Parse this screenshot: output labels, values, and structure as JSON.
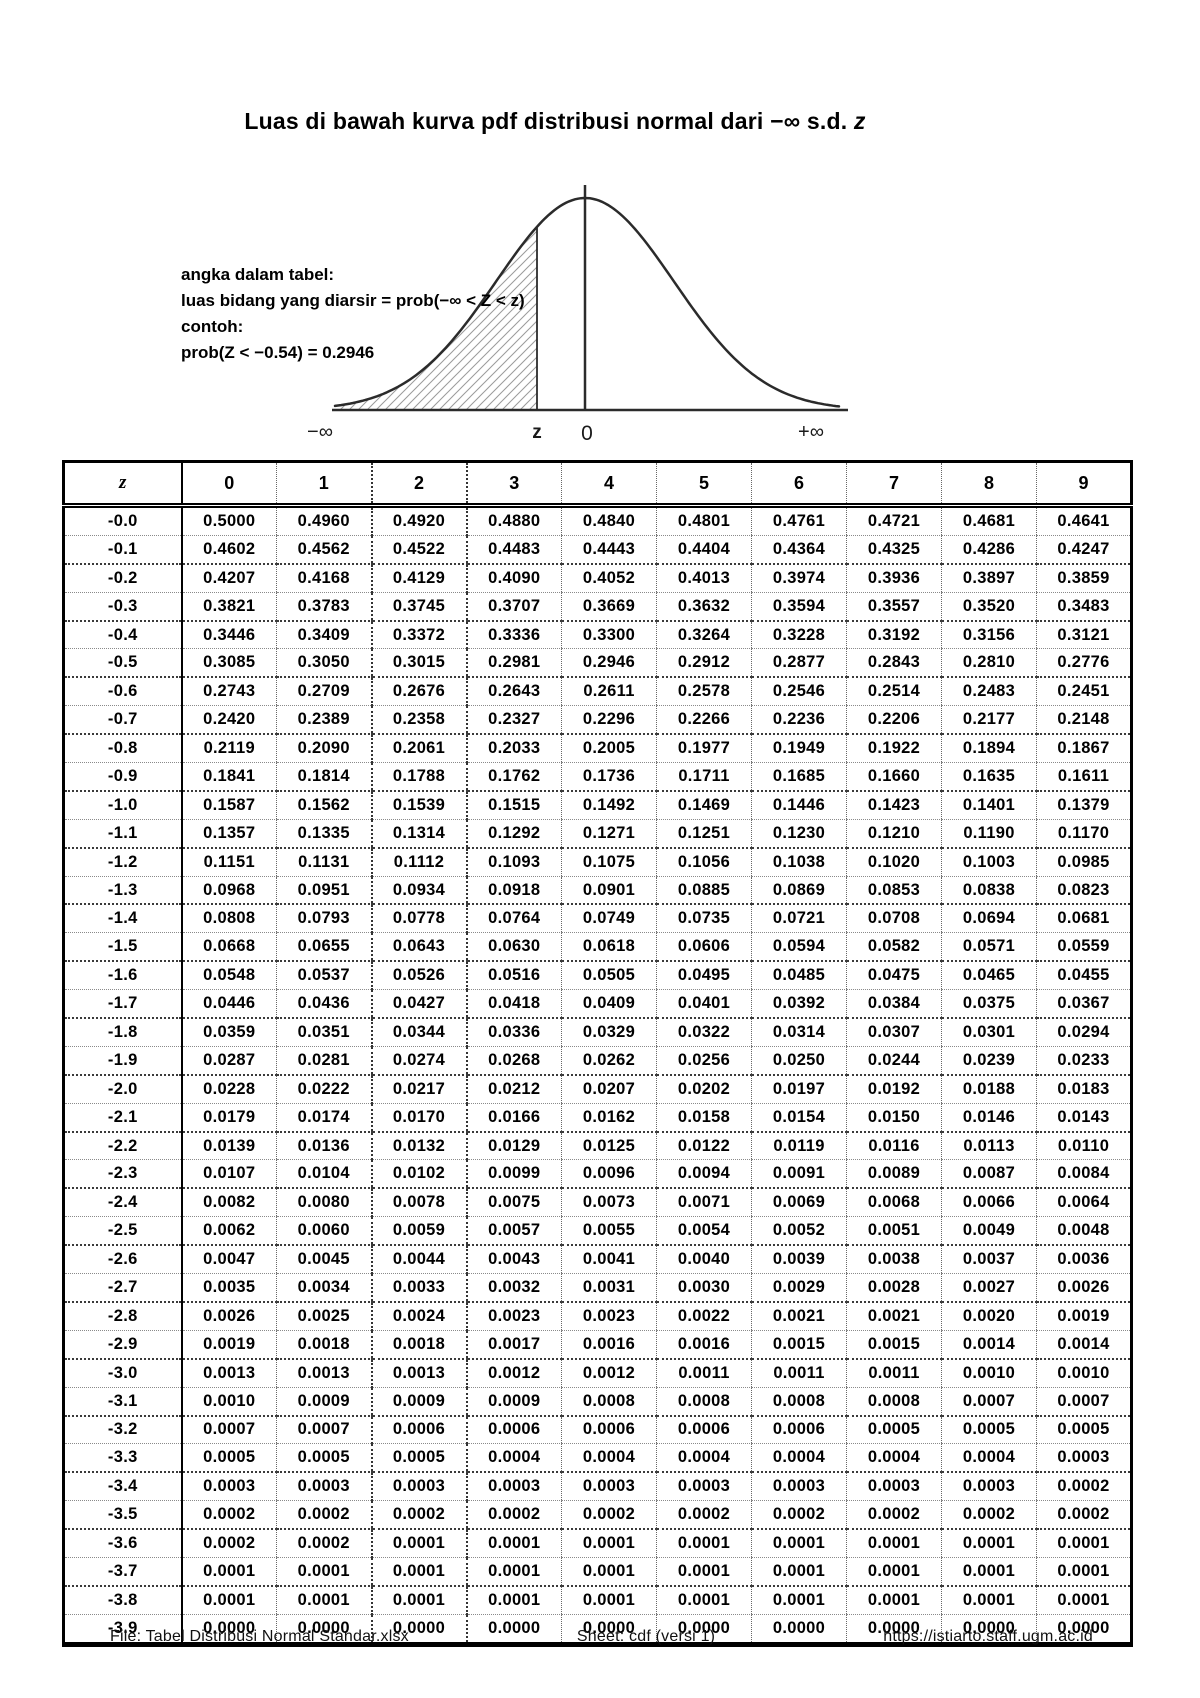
{
  "title": {
    "main": "Luas di bawah kurva pdf distribusi normal dari −∞ s.d. ",
    "italic_suffix": "z"
  },
  "figure": {
    "annotation_lines": [
      "angka dalam tabel:",
      "luas bidang yang diarsir = prob(−∞ < Z < z)",
      "contoh:",
      "prob(Z < −0.54) = 0.2946"
    ],
    "axis_labels": {
      "neg_inf": "−∞",
      "z": "z",
      "zero": "0",
      "pos_inf": "+∞"
    }
  },
  "table": {
    "corner_header": "z",
    "col_headers": [
      "0",
      "1",
      "2",
      "3",
      "4",
      "5",
      "6",
      "7",
      "8",
      "9"
    ],
    "rows": [
      {
        "z": "-0.0",
        "values": [
          "0.5000",
          "0.4960",
          "0.4920",
          "0.4880",
          "0.4840",
          "0.4801",
          "0.4761",
          "0.4721",
          "0.4681",
          "0.4641"
        ]
      },
      {
        "z": "-0.1",
        "values": [
          "0.4602",
          "0.4562",
          "0.4522",
          "0.4483",
          "0.4443",
          "0.4404",
          "0.4364",
          "0.4325",
          "0.4286",
          "0.4247"
        ]
      },
      {
        "z": "-0.2",
        "values": [
          "0.4207",
          "0.4168",
          "0.4129",
          "0.4090",
          "0.4052",
          "0.4013",
          "0.3974",
          "0.3936",
          "0.3897",
          "0.3859"
        ]
      },
      {
        "z": "-0.3",
        "values": [
          "0.3821",
          "0.3783",
          "0.3745",
          "0.3707",
          "0.3669",
          "0.3632",
          "0.3594",
          "0.3557",
          "0.3520",
          "0.3483"
        ]
      },
      {
        "z": "-0.4",
        "values": [
          "0.3446",
          "0.3409",
          "0.3372",
          "0.3336",
          "0.3300",
          "0.3264",
          "0.3228",
          "0.3192",
          "0.3156",
          "0.3121"
        ]
      },
      {
        "z": "-0.5",
        "values": [
          "0.3085",
          "0.3050",
          "0.3015",
          "0.2981",
          "0.2946",
          "0.2912",
          "0.2877",
          "0.2843",
          "0.2810",
          "0.2776"
        ]
      },
      {
        "z": "-0.6",
        "values": [
          "0.2743",
          "0.2709",
          "0.2676",
          "0.2643",
          "0.2611",
          "0.2578",
          "0.2546",
          "0.2514",
          "0.2483",
          "0.2451"
        ]
      },
      {
        "z": "-0.7",
        "values": [
          "0.2420",
          "0.2389",
          "0.2358",
          "0.2327",
          "0.2296",
          "0.2266",
          "0.2236",
          "0.2206",
          "0.2177",
          "0.2148"
        ]
      },
      {
        "z": "-0.8",
        "values": [
          "0.2119",
          "0.2090",
          "0.2061",
          "0.2033",
          "0.2005",
          "0.1977",
          "0.1949",
          "0.1922",
          "0.1894",
          "0.1867"
        ]
      },
      {
        "z": "-0.9",
        "values": [
          "0.1841",
          "0.1814",
          "0.1788",
          "0.1762",
          "0.1736",
          "0.1711",
          "0.1685",
          "0.1660",
          "0.1635",
          "0.1611"
        ]
      },
      {
        "z": "-1.0",
        "values": [
          "0.1587",
          "0.1562",
          "0.1539",
          "0.1515",
          "0.1492",
          "0.1469",
          "0.1446",
          "0.1423",
          "0.1401",
          "0.1379"
        ]
      },
      {
        "z": "-1.1",
        "values": [
          "0.1357",
          "0.1335",
          "0.1314",
          "0.1292",
          "0.1271",
          "0.1251",
          "0.1230",
          "0.1210",
          "0.1190",
          "0.1170"
        ]
      },
      {
        "z": "-1.2",
        "values": [
          "0.1151",
          "0.1131",
          "0.1112",
          "0.1093",
          "0.1075",
          "0.1056",
          "0.1038",
          "0.1020",
          "0.1003",
          "0.0985"
        ]
      },
      {
        "z": "-1.3",
        "values": [
          "0.0968",
          "0.0951",
          "0.0934",
          "0.0918",
          "0.0901",
          "0.0885",
          "0.0869",
          "0.0853",
          "0.0838",
          "0.0823"
        ]
      },
      {
        "z": "-1.4",
        "values": [
          "0.0808",
          "0.0793",
          "0.0778",
          "0.0764",
          "0.0749",
          "0.0735",
          "0.0721",
          "0.0708",
          "0.0694",
          "0.0681"
        ]
      },
      {
        "z": "-1.5",
        "values": [
          "0.0668",
          "0.0655",
          "0.0643",
          "0.0630",
          "0.0618",
          "0.0606",
          "0.0594",
          "0.0582",
          "0.0571",
          "0.0559"
        ]
      },
      {
        "z": "-1.6",
        "values": [
          "0.0548",
          "0.0537",
          "0.0526",
          "0.0516",
          "0.0505",
          "0.0495",
          "0.0485",
          "0.0475",
          "0.0465",
          "0.0455"
        ]
      },
      {
        "z": "-1.7",
        "values": [
          "0.0446",
          "0.0436",
          "0.0427",
          "0.0418",
          "0.0409",
          "0.0401",
          "0.0392",
          "0.0384",
          "0.0375",
          "0.0367"
        ]
      },
      {
        "z": "-1.8",
        "values": [
          "0.0359",
          "0.0351",
          "0.0344",
          "0.0336",
          "0.0329",
          "0.0322",
          "0.0314",
          "0.0307",
          "0.0301",
          "0.0294"
        ]
      },
      {
        "z": "-1.9",
        "values": [
          "0.0287",
          "0.0281",
          "0.0274",
          "0.0268",
          "0.0262",
          "0.0256",
          "0.0250",
          "0.0244",
          "0.0239",
          "0.0233"
        ]
      },
      {
        "z": "-2.0",
        "values": [
          "0.0228",
          "0.0222",
          "0.0217",
          "0.0212",
          "0.0207",
          "0.0202",
          "0.0197",
          "0.0192",
          "0.0188",
          "0.0183"
        ]
      },
      {
        "z": "-2.1",
        "values": [
          "0.0179",
          "0.0174",
          "0.0170",
          "0.0166",
          "0.0162",
          "0.0158",
          "0.0154",
          "0.0150",
          "0.0146",
          "0.0143"
        ]
      },
      {
        "z": "-2.2",
        "values": [
          "0.0139",
          "0.0136",
          "0.0132",
          "0.0129",
          "0.0125",
          "0.0122",
          "0.0119",
          "0.0116",
          "0.0113",
          "0.0110"
        ]
      },
      {
        "z": "-2.3",
        "values": [
          "0.0107",
          "0.0104",
          "0.0102",
          "0.0099",
          "0.0096",
          "0.0094",
          "0.0091",
          "0.0089",
          "0.0087",
          "0.0084"
        ]
      },
      {
        "z": "-2.4",
        "values": [
          "0.0082",
          "0.0080",
          "0.0078",
          "0.0075",
          "0.0073",
          "0.0071",
          "0.0069",
          "0.0068",
          "0.0066",
          "0.0064"
        ]
      },
      {
        "z": "-2.5",
        "values": [
          "0.0062",
          "0.0060",
          "0.0059",
          "0.0057",
          "0.0055",
          "0.0054",
          "0.0052",
          "0.0051",
          "0.0049",
          "0.0048"
        ]
      },
      {
        "z": "-2.6",
        "values": [
          "0.0047",
          "0.0045",
          "0.0044",
          "0.0043",
          "0.0041",
          "0.0040",
          "0.0039",
          "0.0038",
          "0.0037",
          "0.0036"
        ]
      },
      {
        "z": "-2.7",
        "values": [
          "0.0035",
          "0.0034",
          "0.0033",
          "0.0032",
          "0.0031",
          "0.0030",
          "0.0029",
          "0.0028",
          "0.0027",
          "0.0026"
        ]
      },
      {
        "z": "-2.8",
        "values": [
          "0.0026",
          "0.0025",
          "0.0024",
          "0.0023",
          "0.0023",
          "0.0022",
          "0.0021",
          "0.0021",
          "0.0020",
          "0.0019"
        ]
      },
      {
        "z": "-2.9",
        "values": [
          "0.0019",
          "0.0018",
          "0.0018",
          "0.0017",
          "0.0016",
          "0.0016",
          "0.0015",
          "0.0015",
          "0.0014",
          "0.0014"
        ]
      },
      {
        "z": "-3.0",
        "values": [
          "0.0013",
          "0.0013",
          "0.0013",
          "0.0012",
          "0.0012",
          "0.0011",
          "0.0011",
          "0.0011",
          "0.0010",
          "0.0010"
        ]
      },
      {
        "z": "-3.1",
        "values": [
          "0.0010",
          "0.0009",
          "0.0009",
          "0.0009",
          "0.0008",
          "0.0008",
          "0.0008",
          "0.0008",
          "0.0007",
          "0.0007"
        ]
      },
      {
        "z": "-3.2",
        "values": [
          "0.0007",
          "0.0007",
          "0.0006",
          "0.0006",
          "0.0006",
          "0.0006",
          "0.0006",
          "0.0005",
          "0.0005",
          "0.0005"
        ]
      },
      {
        "z": "-3.3",
        "values": [
          "0.0005",
          "0.0005",
          "0.0005",
          "0.0004",
          "0.0004",
          "0.0004",
          "0.0004",
          "0.0004",
          "0.0004",
          "0.0003"
        ]
      },
      {
        "z": "-3.4",
        "values": [
          "0.0003",
          "0.0003",
          "0.0003",
          "0.0003",
          "0.0003",
          "0.0003",
          "0.0003",
          "0.0003",
          "0.0003",
          "0.0002"
        ]
      },
      {
        "z": "-3.5",
        "values": [
          "0.0002",
          "0.0002",
          "0.0002",
          "0.0002",
          "0.0002",
          "0.0002",
          "0.0002",
          "0.0002",
          "0.0002",
          "0.0002"
        ]
      },
      {
        "z": "-3.6",
        "values": [
          "0.0002",
          "0.0002",
          "0.0001",
          "0.0001",
          "0.0001",
          "0.0001",
          "0.0001",
          "0.0001",
          "0.0001",
          "0.0001"
        ]
      },
      {
        "z": "-3.7",
        "values": [
          "0.0001",
          "0.0001",
          "0.0001",
          "0.0001",
          "0.0001",
          "0.0001",
          "0.0001",
          "0.0001",
          "0.0001",
          "0.0001"
        ]
      },
      {
        "z": "-3.8",
        "values": [
          "0.0001",
          "0.0001",
          "0.0001",
          "0.0001",
          "0.0001",
          "0.0001",
          "0.0001",
          "0.0001",
          "0.0001",
          "0.0001"
        ]
      },
      {
        "z": "-3.9",
        "values": [
          "0.0000",
          "0.0000",
          "0.0000",
          "0.0000",
          "0.0000",
          "0.0000",
          "0.0000",
          "0.0000",
          "0.0000",
          "0.0000"
        ]
      }
    ]
  },
  "footer": {
    "file": "File: Tabel Distribusi Normal Standar.xlsx",
    "sheet": "Sheet: cdf (versi 1)",
    "url": "https://istiarto.staff.ugm.ac.id"
  }
}
